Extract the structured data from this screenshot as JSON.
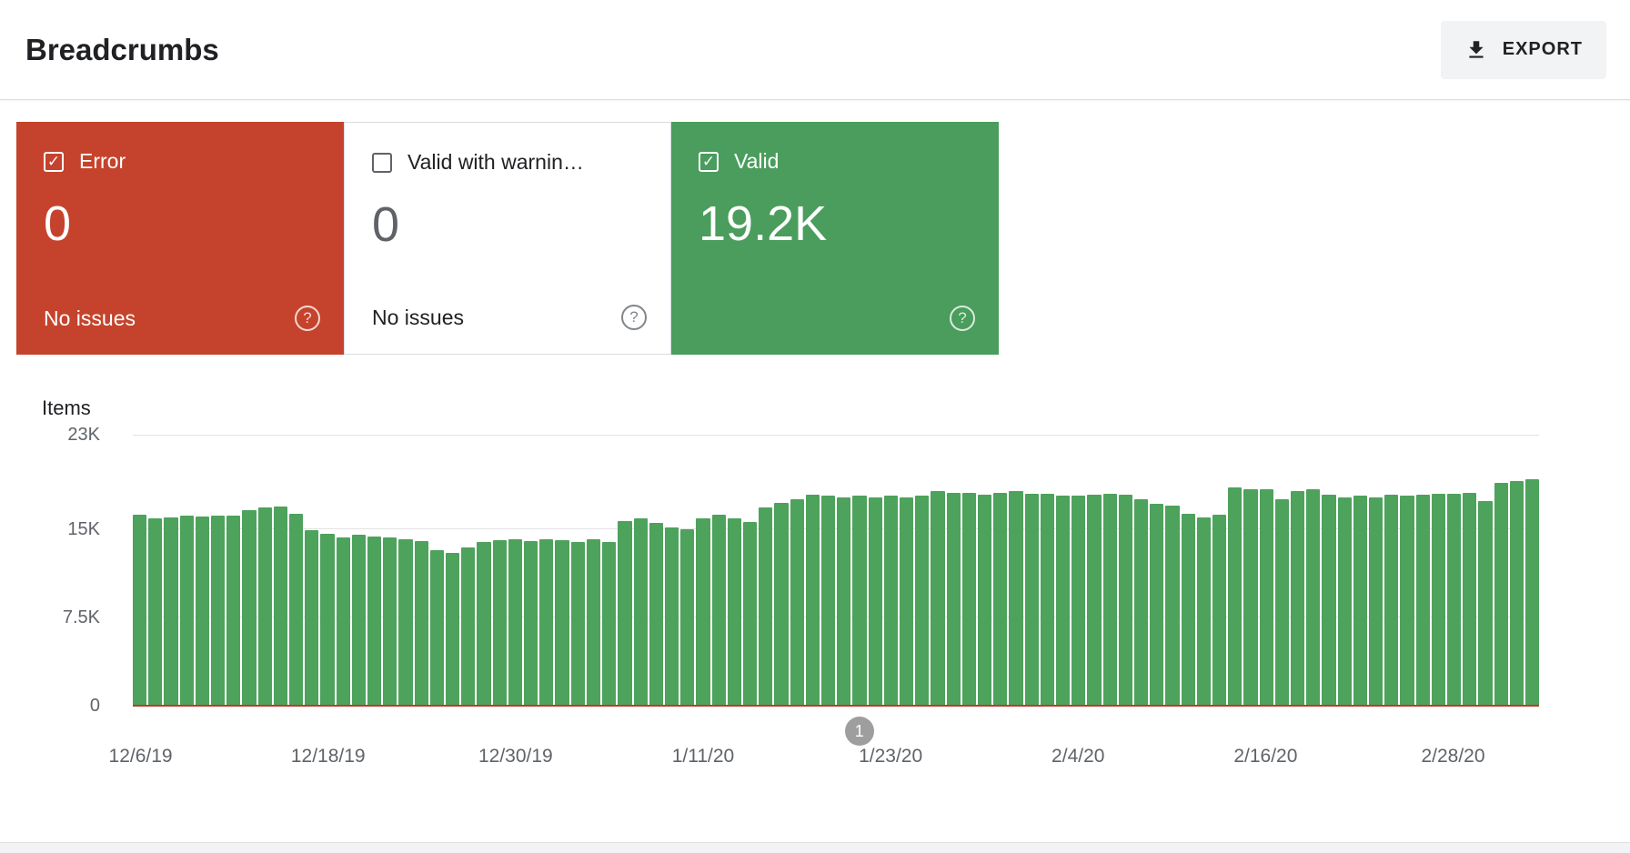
{
  "page": {
    "title": "Breadcrumbs"
  },
  "header": {
    "export_label": "EXPORT"
  },
  "icons": {
    "check_glyph": "✓",
    "help_glyph": "?"
  },
  "colors": {
    "error_red": "#c5432c",
    "valid_green": "#4a9d5c",
    "bar_green": "#4da25c",
    "baseline_red": "#c0392b",
    "marker_gray": "#9e9e9e",
    "export_bg": "#f1f3f4",
    "grid_line": "#e3e3e3",
    "text_primary": "#202124",
    "text_secondary": "#5f6368"
  },
  "cards": [
    {
      "id": "error",
      "label": "Error",
      "value": "0",
      "sub": "No issues",
      "checked": true
    },
    {
      "id": "valid-with-warnings",
      "label": "Valid with warnin…",
      "value": "0",
      "sub": "No issues",
      "checked": false
    },
    {
      "id": "valid",
      "label": "Valid",
      "value": "19.2K",
      "checked": true
    }
  ],
  "chart_data": {
    "type": "bar",
    "title": "Items",
    "ylabel": "Items",
    "series_name": "Valid",
    "ylim": [
      0,
      23000
    ],
    "grid": true,
    "yticks": [
      {
        "label": "23K",
        "value": 23000
      },
      {
        "label": "15K",
        "value": 15000
      },
      {
        "label": "7.5K",
        "value": 7500
      },
      {
        "label": "0",
        "value": 0
      }
    ],
    "x": [
      "12/6/19",
      "12/7/19",
      "12/8/19",
      "12/9/19",
      "12/10/19",
      "12/11/19",
      "12/12/19",
      "12/13/19",
      "12/14/19",
      "12/15/19",
      "12/16/19",
      "12/17/19",
      "12/18/19",
      "12/19/19",
      "12/20/19",
      "12/21/19",
      "12/22/19",
      "12/23/19",
      "12/24/19",
      "12/25/19",
      "12/26/19",
      "12/27/19",
      "12/28/19",
      "12/29/19",
      "12/30/19",
      "12/31/19",
      "1/1/20",
      "1/2/20",
      "1/3/20",
      "1/4/20",
      "1/5/20",
      "1/6/20",
      "1/7/20",
      "1/8/20",
      "1/9/20",
      "1/10/20",
      "1/11/20",
      "1/12/20",
      "1/13/20",
      "1/14/20",
      "1/15/20",
      "1/16/20",
      "1/17/20",
      "1/18/20",
      "1/19/20",
      "1/20/20",
      "1/21/20",
      "1/22/20",
      "1/23/20",
      "1/24/20",
      "1/25/20",
      "1/26/20",
      "1/27/20",
      "1/28/20",
      "1/29/20",
      "1/30/20",
      "1/31/20",
      "2/1/20",
      "2/2/20",
      "2/3/20",
      "2/4/20",
      "2/5/20",
      "2/6/20",
      "2/7/20",
      "2/8/20",
      "2/9/20",
      "2/10/20",
      "2/11/20",
      "2/12/20",
      "2/13/20",
      "2/14/20",
      "2/15/20",
      "2/16/20",
      "2/17/20",
      "2/18/20",
      "2/19/20",
      "2/20/20",
      "2/21/20",
      "2/22/20",
      "2/23/20",
      "2/24/20",
      "2/25/20",
      "2/26/20",
      "2/27/20",
      "2/28/20",
      "2/29/20",
      "3/1/20",
      "3/2/20",
      "3/3/20",
      "3/4/20"
    ],
    "values": [
      16200,
      15900,
      15950,
      16100,
      16050,
      16150,
      16100,
      16600,
      16800,
      16900,
      16300,
      14900,
      14600,
      14250,
      14500,
      14350,
      14300,
      14150,
      14000,
      13200,
      13000,
      13450,
      13900,
      14050,
      14100,
      14000,
      14100,
      14050,
      13900,
      14100,
      13900,
      15700,
      15900,
      15500,
      15100,
      15000,
      15900,
      16200,
      15900,
      15600,
      16800,
      17200,
      17500,
      17900,
      17800,
      17700,
      17800,
      17700,
      17800,
      17700,
      17800,
      18200,
      18100,
      18100,
      17900,
      18100,
      18200,
      18000,
      18000,
      17800,
      17800,
      17900,
      18000,
      17900,
      17500,
      17100,
      17000,
      16300,
      16000,
      16200,
      18500,
      18400,
      18400,
      17500,
      18200,
      18400,
      17900,
      17700,
      17800,
      17700,
      17900,
      17800,
      17900,
      18000,
      18000,
      18100,
      17400,
      18900,
      19100,
      19200
    ],
    "x_tick_labels": [
      "12/6/19",
      "12/18/19",
      "12/30/19",
      "1/11/20",
      "1/23/20",
      "2/4/20",
      "2/16/20",
      "2/28/20"
    ],
    "x_tick_indices": [
      0,
      12,
      24,
      36,
      48,
      60,
      72,
      84
    ],
    "error_line": {
      "name": "Error",
      "value": 0
    },
    "marker": {
      "label": "1",
      "index": 46
    },
    "legend_position": "none"
  }
}
